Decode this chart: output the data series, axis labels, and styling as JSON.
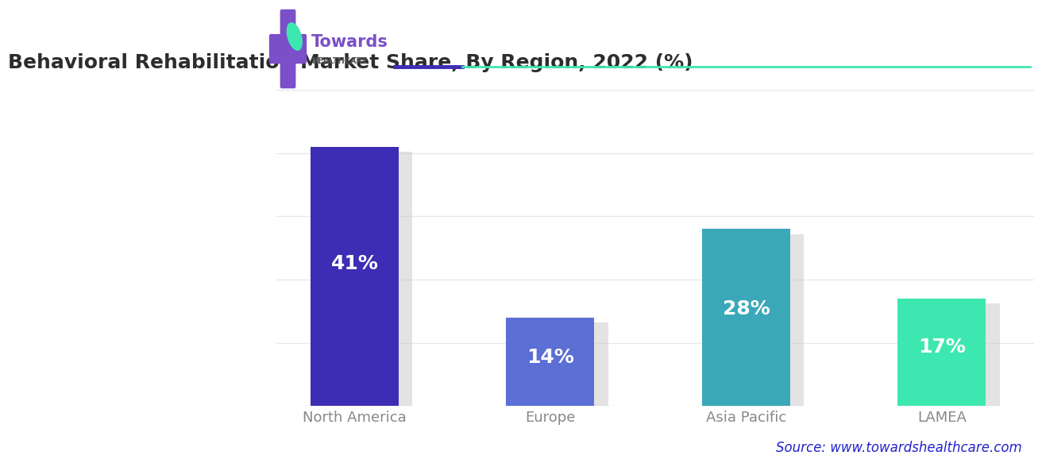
{
  "title": "Behavioral Rehabilitation Market Share, By Region, 2022 (%)",
  "categories": [
    "North America",
    "Europe",
    "Asia Pacific",
    "LAMEA"
  ],
  "values": [
    41,
    14,
    28,
    17
  ],
  "labels": [
    "41%",
    "14%",
    "28%",
    "17%"
  ],
  "bar_colors": [
    "#3d2db5",
    "#5b6fd4",
    "#3aa8b8",
    "#3de8b0"
  ],
  "shadow_color": "#cccccc",
  "background_color": "#ffffff",
  "grid_color": "#e8e8e8",
  "title_color": "#2d2d2d",
  "label_color": "#ffffff",
  "tick_label_color": "#888888",
  "source_text": "Source: www.towardshealthcare.com",
  "source_color": "#2222cc",
  "separator_colors": [
    "#3d2db5",
    "#3de8b0"
  ],
  "logo_cross_color": "#7b4fc8",
  "logo_text_color": "#7b4fc8",
  "logo_sub_color": "#555555",
  "logo_leaf_color": "#3de8b0",
  "ylim": [
    0,
    50
  ],
  "title_fontsize": 18,
  "label_fontsize": 18,
  "tick_fontsize": 13,
  "source_fontsize": 12
}
